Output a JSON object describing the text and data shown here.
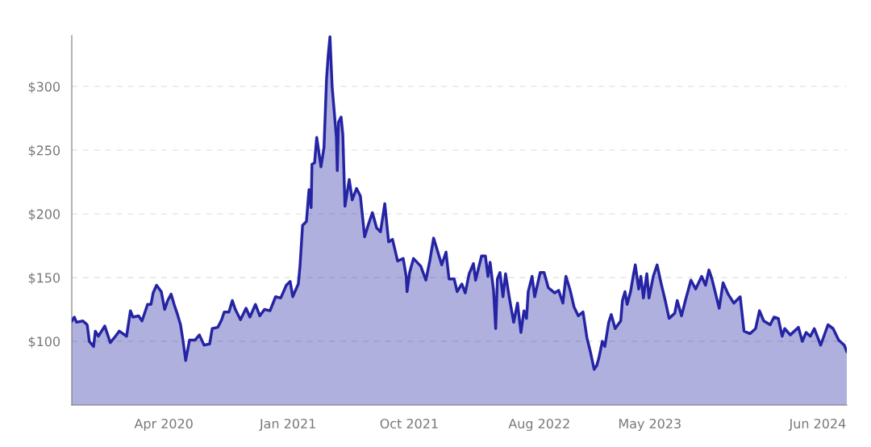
{
  "chart_data": {
    "type": "area",
    "x": [
      "2019-09-01",
      "2019-09-07",
      "2019-09-12",
      "2019-09-27",
      "2019-10-07",
      "2019-10-12",
      "2019-10-22",
      "2019-10-26",
      "2019-11-02",
      "2019-11-17",
      "2019-11-30",
      "2019-12-12",
      "2019-12-21",
      "2020-01-07",
      "2020-01-16",
      "2020-01-22",
      "2020-02-04",
      "2020-02-12",
      "2020-02-25",
      "2020-03-04",
      "2020-03-09",
      "2020-03-17",
      "2020-03-28",
      "2020-04-05",
      "2020-04-12",
      "2020-04-20",
      "2020-04-27",
      "2020-05-05",
      "2020-05-12",
      "2020-05-18",
      "2020-05-24",
      "2020-06-02",
      "2020-06-15",
      "2020-06-25",
      "2020-07-06",
      "2020-07-19",
      "2020-07-25",
      "2020-08-07",
      "2020-08-16",
      "2020-08-22",
      "2020-09-02",
      "2020-09-10",
      "2020-09-17",
      "2020-09-29",
      "2020-10-12",
      "2020-10-21",
      "2020-11-03",
      "2020-11-13",
      "2020-11-24",
      "2020-12-07",
      "2020-12-20",
      "2021-01-01",
      "2021-01-14",
      "2021-01-23",
      "2021-01-29",
      "2021-02-11",
      "2021-02-15",
      "2021-02-21",
      "2021-03-02",
      "2021-03-08",
      "2021-03-13",
      "2021-03-15",
      "2021-03-21",
      "2021-03-26",
      "2021-04-05",
      "2021-04-12",
      "2021-04-18",
      "2021-04-22",
      "2021-04-26",
      "2021-05-01",
      "2021-05-05",
      "2021-05-11",
      "2021-05-13",
      "2021-05-16",
      "2021-05-22",
      "2021-05-26",
      "2021-05-31",
      "2021-06-10",
      "2021-06-17",
      "2021-06-27",
      "2021-07-06",
      "2021-07-16",
      "2021-07-25",
      "2021-08-03",
      "2021-08-13",
      "2021-08-22",
      "2021-09-01",
      "2021-09-10",
      "2021-09-19",
      "2021-10-01",
      "2021-10-14",
      "2021-10-21",
      "2021-10-23",
      "2021-10-29",
      "2021-11-07",
      "2021-11-24",
      "2021-12-06",
      "2021-12-15",
      "2021-12-24",
      "2022-01-03",
      "2022-01-12",
      "2022-01-22",
      "2022-01-29",
      "2022-02-10",
      "2022-02-17",
      "2022-02-28",
      "2022-03-08",
      "2022-03-17",
      "2022-03-27",
      "2022-04-01",
      "2022-04-15",
      "2022-04-24",
      "2022-04-30",
      "2022-05-05",
      "2022-05-13",
      "2022-05-18",
      "2022-05-22",
      "2022-05-28",
      "2022-06-04",
      "2022-06-10",
      "2022-06-19",
      "2022-06-29",
      "2022-07-08",
      "2022-07-16",
      "2022-07-23",
      "2022-07-29",
      "2022-08-02",
      "2022-08-11",
      "2022-08-17",
      "2022-08-30",
      "2022-09-08",
      "2022-09-18",
      "2022-10-03",
      "2022-10-12",
      "2022-10-22",
      "2022-10-29",
      "2022-11-08",
      "2022-11-17",
      "2022-11-27",
      "2022-12-08",
      "2022-12-17",
      "2022-12-25",
      "2023-01-03",
      "2023-01-09",
      "2023-01-14",
      "2023-01-22",
      "2023-01-28",
      "2023-02-06",
      "2023-02-12",
      "2023-02-21",
      "2023-03-06",
      "2023-03-10",
      "2023-03-16",
      "2023-03-21",
      "2023-03-29",
      "2023-04-04",
      "2023-04-09",
      "2023-04-17",
      "2023-04-22",
      "2023-04-28",
      "2023-05-06",
      "2023-05-11",
      "2023-05-21",
      "2023-05-30",
      "2023-06-08",
      "2023-06-18",
      "2023-06-27",
      "2023-07-10",
      "2023-07-16",
      "2023-07-26",
      "2023-08-04",
      "2023-08-17",
      "2023-08-28",
      "2023-09-11",
      "2023-09-20",
      "2023-09-28",
      "2023-10-05",
      "2023-10-22",
      "2023-10-31",
      "2023-11-12",
      "2023-11-25",
      "2023-12-10",
      "2023-12-19",
      "2024-01-02",
      "2024-01-15",
      "2024-01-24",
      "2024-02-03",
      "2024-02-18",
      "2024-02-27",
      "2024-03-08",
      "2024-03-17",
      "2024-03-23",
      "2024-04-05",
      "2024-04-24",
      "2024-05-03",
      "2024-05-12",
      "2024-05-22",
      "2024-05-31",
      "2024-06-15",
      "2024-07-02",
      "2024-07-14",
      "2024-07-27",
      "2024-08-09",
      "2024-08-15"
    ],
    "series": [
      {
        "color": "#2424a4",
        "values": [
          116,
          119,
          115,
          116,
          113,
          100,
          96,
          108,
          104,
          112,
          99,
          104,
          108,
          104,
          124,
          119,
          120,
          116,
          129,
          129,
          138,
          144,
          139,
          125,
          132,
          137,
          129,
          121,
          113,
          100,
          85,
          101,
          101,
          105,
          97,
          98,
          110,
          111,
          117,
          123,
          123,
          132,
          125,
          117,
          126,
          119,
          129,
          120,
          125,
          124,
          135,
          134,
          144,
          147,
          135,
          145,
          159,
          191,
          194,
          219,
          205,
          239,
          240,
          260,
          237,
          252,
          306,
          325,
          339,
          300,
          284,
          260,
          234,
          272,
          276,
          262,
          206,
          227,
          211,
          220,
          214,
          182,
          192,
          201,
          189,
          186,
          208,
          178,
          180,
          163,
          165,
          151,
          139,
          154,
          165,
          159,
          148,
          163,
          181,
          170,
          160,
          170,
          149,
          149,
          139,
          145,
          138,
          153,
          161,
          148,
          167,
          167,
          151,
          162,
          140,
          110,
          149,
          154,
          135,
          153,
          134,
          115,
          130,
          107,
          124,
          118,
          139,
          151,
          135,
          154,
          154,
          142,
          138,
          140,
          130,
          151,
          140,
          127,
          120,
          123,
          103,
          92,
          78,
          81,
          87,
          100,
          96,
          115,
          121,
          110,
          116,
          132,
          139,
          129,
          139,
          151,
          160,
          141,
          151,
          134,
          153,
          134,
          151,
          160,
          146,
          132,
          118,
          122,
          132,
          120,
          132,
          148,
          141,
          151,
          144,
          156,
          149,
          126,
          146,
          137,
          130,
          135,
          108,
          106,
          110,
          124,
          116,
          113,
          119,
          118,
          104,
          110,
          105,
          111,
          100,
          107,
          104,
          110,
          97,
          113,
          110,
          101,
          97,
          92
        ]
      }
    ],
    "xlim": [
      "2019-09-01",
      "2024-08-15"
    ],
    "xticks": [
      {
        "value": "2020-04-03",
        "label": "Apr 2020"
      },
      {
        "value": "2021-01-18",
        "label": "Jan 2021"
      },
      {
        "value": "2021-10-28",
        "label": "Oct 2021"
      },
      {
        "value": "2022-08-28",
        "label": "Aug 2022"
      },
      {
        "value": "2023-05-13",
        "label": "May 2023"
      },
      {
        "value": "2024-06-08",
        "label": "Jun 2024"
      }
    ],
    "ylim": [
      50,
      340
    ],
    "yticks": [
      {
        "value": 100,
        "label": "$100"
      },
      {
        "value": 150,
        "label": "$150"
      },
      {
        "value": 200,
        "label": "$200"
      },
      {
        "value": 250,
        "label": "$250"
      },
      {
        "value": 300,
        "label": "$300"
      }
    ],
    "grid": "y"
  }
}
